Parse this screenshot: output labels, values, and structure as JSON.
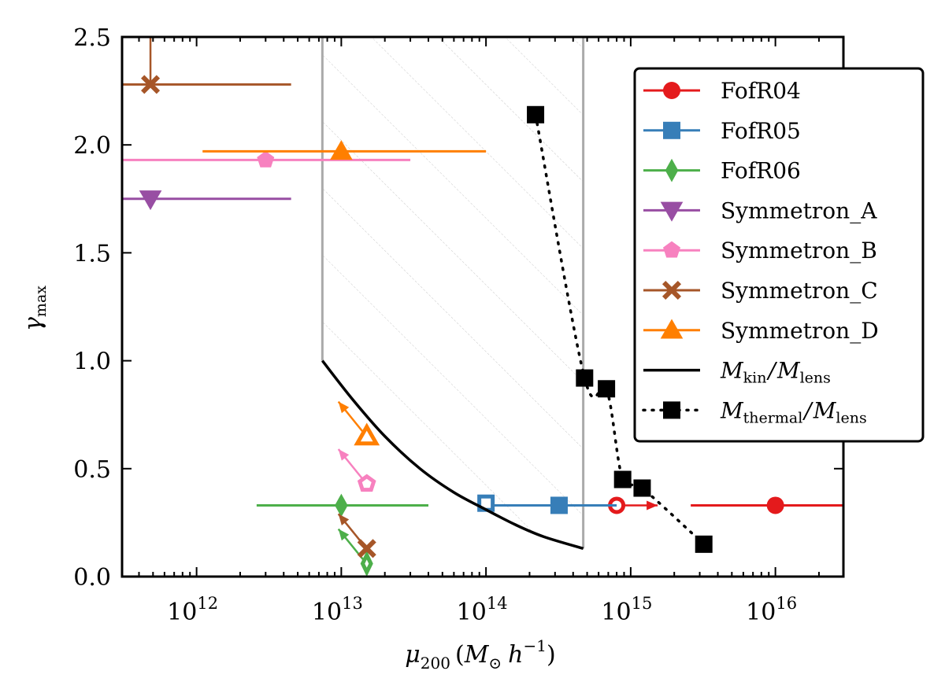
{
  "chart_data": {
    "type": "scatter",
    "title": "",
    "xlabel": "μ200 (M⊙ h⁻¹)",
    "xlabel_parts": {
      "symbol": "μ",
      "sub": "200",
      "unit_open": "(",
      "unit_symbol": "M",
      "unit_sub": "⊙",
      "unit_h": "h",
      "unit_sup": "−1",
      "unit_close": ")"
    },
    "ylabel": "γmax",
    "ylabel_parts": {
      "symbol": "γ",
      "sub": "max"
    },
    "xscale": "log",
    "xlim_log10": [
      11.485,
      16.47
    ],
    "ylim": [
      0.0,
      2.5
    ],
    "x_ticks": [
      {
        "exp": 12,
        "base": "10",
        "sup": "12"
      },
      {
        "exp": 13,
        "base": "10",
        "sup": "13"
      },
      {
        "exp": 14,
        "base": "10",
        "sup": "14"
      },
      {
        "exp": 15,
        "base": "10",
        "sup": "15"
      },
      {
        "exp": 16,
        "base": "10",
        "sup": "16"
      }
    ],
    "y_ticks": [
      {
        "value": 0.0,
        "label": "0.0"
      },
      {
        "value": 0.5,
        "label": "0.5"
      },
      {
        "value": 1.0,
        "label": "1.0"
      },
      {
        "value": 1.5,
        "label": "1.5"
      },
      {
        "value": 2.0,
        "label": "2.0"
      },
      {
        "value": 2.5,
        "label": "2.5"
      }
    ],
    "grid": false,
    "legend_position": "upper-right",
    "hatched_region": {
      "x_min": 7400000000000.0,
      "x_max": 470000000000000.0,
      "boundary_color": "#aaaaaa",
      "lower_curve": "M_kin/M_lens",
      "upper_y": 2.5
    },
    "series": [
      {
        "name": "FofR04",
        "color": "#e41a1c",
        "marker": "circle",
        "points": [
          {
            "x": 1e+16,
            "y": 0.33,
            "filled": true,
            "xerr_low": 2600000000000000.0,
            "xerr_high": 3e+16
          },
          {
            "x": 800000000000000.0,
            "y": 0.33,
            "filled": false,
            "arrow": "right"
          }
        ]
      },
      {
        "name": "FofR05",
        "color": "#377eb8",
        "marker": "square",
        "points": [
          {
            "x": 320000000000000.0,
            "y": 0.33,
            "filled": true,
            "xerr_low": 100000000000000.0,
            "xerr_high": 800000000000000.0
          },
          {
            "x": 100000000000000.0,
            "y": 0.34,
            "filled": false
          }
        ]
      },
      {
        "name": "FofR06",
        "color": "#4daf4a",
        "marker": "diamond",
        "points": [
          {
            "x": 10000000000000.0,
            "y": 0.33,
            "filled": true,
            "xerr_low": 2600000000000.0,
            "xerr_high": 40000000000000.0
          },
          {
            "x": 15000000000000.0,
            "y": 0.06,
            "filled": false,
            "arrow": "up-left"
          }
        ]
      },
      {
        "name": "Symmetron_A",
        "color": "#984ea3",
        "marker": "triangle-down",
        "points": [
          {
            "x": 480000000000.0,
            "y": 1.75,
            "filled": true,
            "xerr_low": 300000000000.0,
            "xerr_high": 4500000000000.0
          }
        ]
      },
      {
        "name": "Symmetron_B",
        "color": "#f781bf",
        "marker": "pentagon",
        "points": [
          {
            "x": 3000000000000.0,
            "y": 1.93,
            "filled": true,
            "xerr_low": 300000000000.0,
            "xerr_high": 30000000000000.0
          },
          {
            "x": 15000000000000.0,
            "y": 0.43,
            "filled": false,
            "arrow": "up-left"
          }
        ]
      },
      {
        "name": "Symmetron_C",
        "color": "#a65628",
        "marker": "x",
        "points": [
          {
            "x": 480000000000.0,
            "y": 2.28,
            "filled": true,
            "xerr_low": 300000000000.0,
            "xerr_high": 4500000000000.0,
            "arrow": "up"
          },
          {
            "x": 15000000000000.0,
            "y": 0.13,
            "filled": true,
            "arrow": "up-left"
          }
        ]
      },
      {
        "name": "Symmetron_D",
        "color": "#ff7f00",
        "marker": "triangle-up",
        "points": [
          {
            "x": 10000000000000.0,
            "y": 1.97,
            "filled": true,
            "xerr_low": 1100000000000.0,
            "xerr_high": 100000000000000.0
          },
          {
            "x": 15000000000000.0,
            "y": 0.65,
            "filled": false,
            "arrow": "up-left"
          }
        ]
      },
      {
        "name": "M_kin/M_lens",
        "label_main": "M",
        "label_sub": "kin",
        "label_sep": "/",
        "label_main2": "M",
        "label_sub2": "lens",
        "color": "#000000",
        "style": "solid-line",
        "points": [
          {
            "x": 7400000000000.0,
            "y": 1.0
          },
          {
            "x": 12000000000000.0,
            "y": 0.82
          },
          {
            "x": 20000000000000.0,
            "y": 0.65
          },
          {
            "x": 35000000000000.0,
            "y": 0.5
          },
          {
            "x": 60000000000000.0,
            "y": 0.39
          },
          {
            "x": 100000000000000.0,
            "y": 0.31
          },
          {
            "x": 160000000000000.0,
            "y": 0.24
          },
          {
            "x": 250000000000000.0,
            "y": 0.185
          },
          {
            "x": 470000000000000.0,
            "y": 0.13
          }
        ]
      },
      {
        "name": "M_thermal/M_lens",
        "label_main": "M",
        "label_sub": "thermal",
        "label_sep": "/",
        "label_main2": "M",
        "label_sub2": "lens",
        "color": "#000000",
        "style": "dotted-square",
        "points": [
          {
            "x": 220000000000000.0,
            "y": 2.14
          },
          {
            "x": 480000000000000.0,
            "y": 0.92
          },
          {
            "x": 680000000000000.0,
            "y": 0.87
          },
          {
            "x": 880000000000000.0,
            "y": 0.45
          },
          {
            "x": 1200000000000000.0,
            "y": 0.41
          },
          {
            "x": 3200000000000000.0,
            "y": 0.15
          }
        ]
      }
    ]
  }
}
